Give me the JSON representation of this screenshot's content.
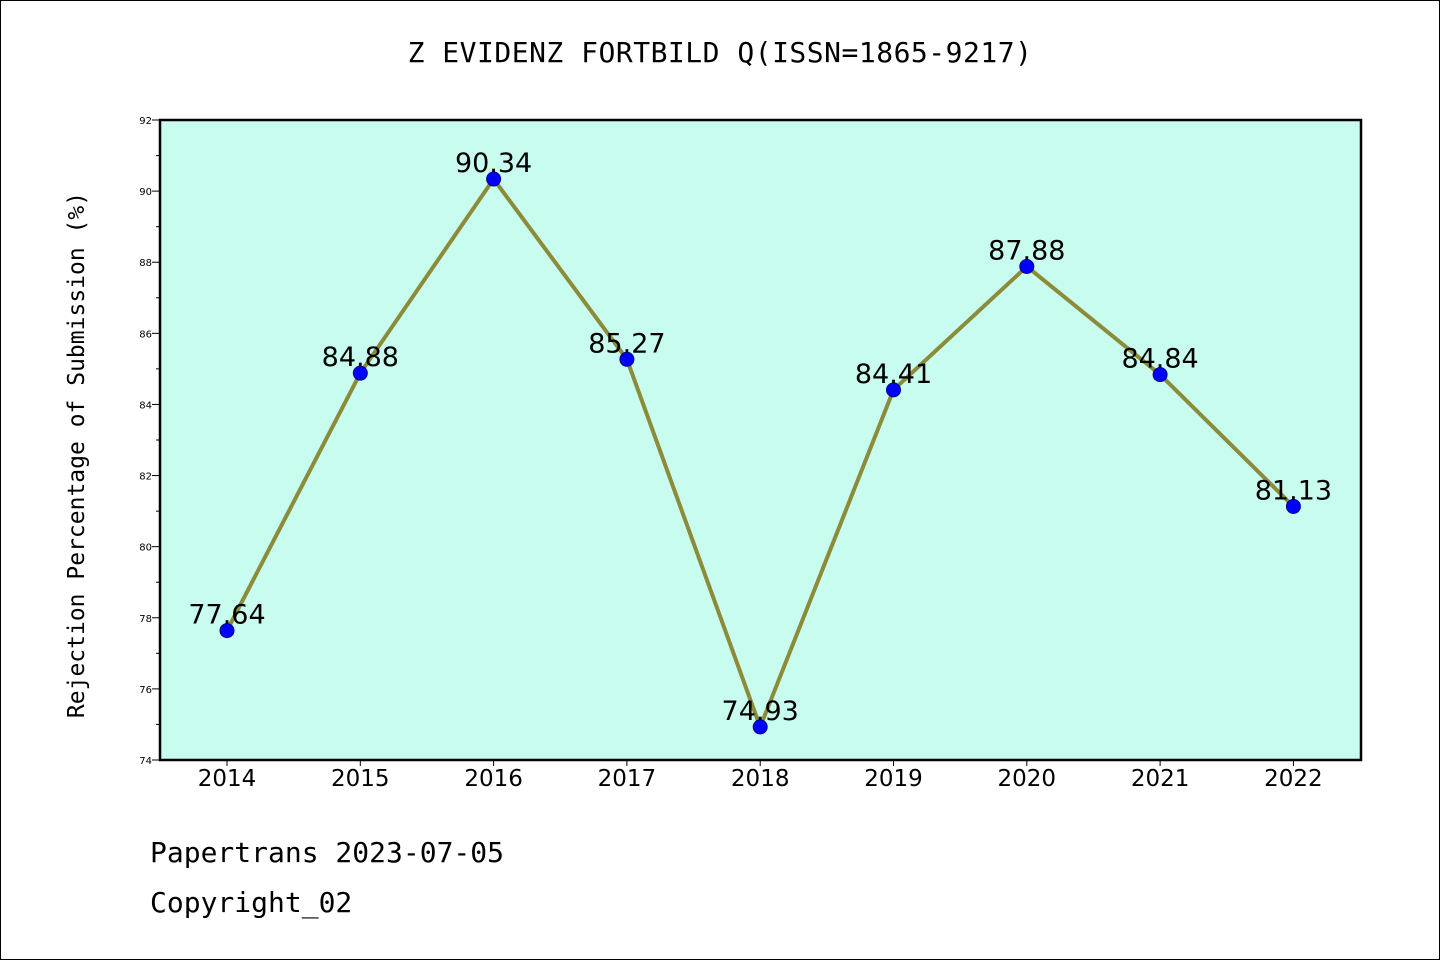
{
  "page": {
    "footer_date": "Papertrans 2023-07-05",
    "footer_copyright": "Copyright_02"
  },
  "chart_data": {
    "type": "line",
    "title": "Z EVIDENZ FORTBILD Q(ISSN=1865-9217)",
    "xlabel": "",
    "ylabel": "Rejection Percentage of Submission (%)",
    "categories": [
      "2014",
      "2015",
      "2016",
      "2017",
      "2018",
      "2019",
      "2020",
      "2021",
      "2022"
    ],
    "series": [
      {
        "values": [
          77.64,
          84.88,
          90.34,
          85.27,
          74.93,
          84.41,
          87.88,
          84.84,
          81.13
        ],
        "labels": [
          "77.64",
          "84.88",
          "90.34",
          "85.27",
          "74.93",
          "84.41",
          "87.88",
          "84.84",
          "81.13"
        ]
      }
    ],
    "ylim": [
      74,
      92
    ],
    "yticks": [
      74,
      76,
      78,
      80,
      82,
      84,
      86,
      88,
      90,
      92
    ],
    "grid": false,
    "legend": "none",
    "colors": {
      "plot_background": "#c8fcee",
      "line": "#8b8b3a",
      "marker": "#0000ff"
    }
  }
}
